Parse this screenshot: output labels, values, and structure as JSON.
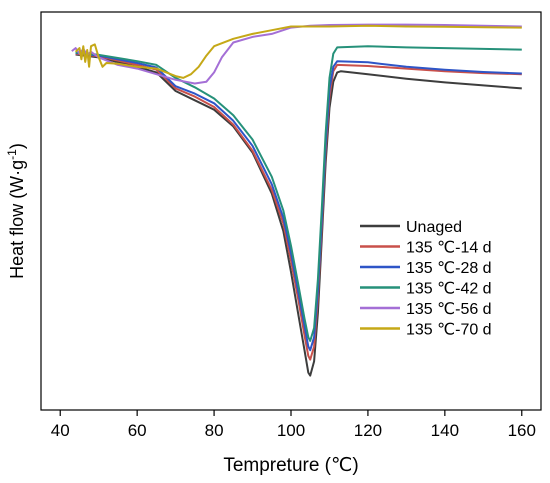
{
  "chart_data": {
    "type": "line",
    "title": "",
    "xlabel": "Tempreture (℃)",
    "ylabel": "Heat flow (W·g⁻¹)",
    "ylabel_parts": {
      "main": "Heat flow (W·g",
      "sup": "-1",
      "close": ")"
    },
    "xlim": [
      35,
      165
    ],
    "ylim": [
      0,
      1
    ],
    "xticks": [
      40,
      60,
      80,
      100,
      120,
      140,
      160
    ],
    "xtick_labels": [
      "40",
      "60",
      "80",
      "100",
      "120",
      "140",
      "160"
    ],
    "y_tick_labels_shown": false,
    "grid": false,
    "legend_position": "lower-right",
    "series": [
      {
        "name": "Unaged",
        "color": "#3d3d3d",
        "points": [
          [
            44,
            0.913
          ],
          [
            50,
            0.905
          ],
          [
            60,
            0.88
          ],
          [
            65,
            0.865
          ],
          [
            70,
            0.815
          ],
          [
            75,
            0.79
          ],
          [
            80,
            0.765
          ],
          [
            85,
            0.72
          ],
          [
            90,
            0.65
          ],
          [
            95,
            0.54
          ],
          [
            98,
            0.44
          ],
          [
            100,
            0.33
          ],
          [
            102,
            0.21
          ],
          [
            103.5,
            0.12
          ],
          [
            104.5,
            0.06
          ],
          [
            105,
            0.052
          ],
          [
            106,
            0.09
          ],
          [
            107,
            0.22
          ],
          [
            108,
            0.42
          ],
          [
            109,
            0.62
          ],
          [
            110,
            0.77
          ],
          [
            111,
            0.84
          ],
          [
            112,
            0.865
          ],
          [
            113,
            0.868
          ],
          [
            120,
            0.86
          ],
          [
            130,
            0.848
          ],
          [
            140,
            0.838
          ],
          [
            150,
            0.83
          ],
          [
            160,
            0.822
          ]
        ]
      },
      {
        "name": "135 ℃-14 d",
        "color": "#c9504a",
        "points": [
          [
            44,
            0.915
          ],
          [
            50,
            0.908
          ],
          [
            60,
            0.885
          ],
          [
            65,
            0.872
          ],
          [
            70,
            0.822
          ],
          [
            75,
            0.8
          ],
          [
            80,
            0.772
          ],
          [
            85,
            0.725
          ],
          [
            90,
            0.655
          ],
          [
            95,
            0.55
          ],
          [
            98,
            0.46
          ],
          [
            100,
            0.36
          ],
          [
            102,
            0.25
          ],
          [
            103.5,
            0.16
          ],
          [
            104.5,
            0.105
          ],
          [
            105,
            0.095
          ],
          [
            106,
            0.13
          ],
          [
            107,
            0.26
          ],
          [
            108,
            0.45
          ],
          [
            109,
            0.65
          ],
          [
            110,
            0.8
          ],
          [
            111,
            0.868
          ],
          [
            112,
            0.885
          ],
          [
            120,
            0.882
          ],
          [
            130,
            0.875
          ],
          [
            140,
            0.868
          ],
          [
            150,
            0.863
          ],
          [
            160,
            0.86
          ]
        ]
      },
      {
        "name": "135 ℃-28 d",
        "color": "#2e55c7",
        "points": [
          [
            44,
            0.917
          ],
          [
            50,
            0.91
          ],
          [
            60,
            0.89
          ],
          [
            65,
            0.878
          ],
          [
            70,
            0.828
          ],
          [
            75,
            0.808
          ],
          [
            80,
            0.782
          ],
          [
            85,
            0.735
          ],
          [
            90,
            0.668
          ],
          [
            95,
            0.565
          ],
          [
            98,
            0.475
          ],
          [
            100,
            0.38
          ],
          [
            102,
            0.27
          ],
          [
            103.5,
            0.185
          ],
          [
            104.5,
            0.13
          ],
          [
            105,
            0.12
          ],
          [
            106,
            0.155
          ],
          [
            107,
            0.28
          ],
          [
            108,
            0.47
          ],
          [
            109,
            0.67
          ],
          [
            110,
            0.82
          ],
          [
            111,
            0.88
          ],
          [
            112,
            0.895
          ],
          [
            120,
            0.892
          ],
          [
            130,
            0.88
          ],
          [
            140,
            0.872
          ],
          [
            150,
            0.866
          ],
          [
            160,
            0.862
          ]
        ]
      },
      {
        "name": "135 ℃-42 d",
        "color": "#26917a",
        "points": [
          [
            44,
            0.918
          ],
          [
            50,
            0.912
          ],
          [
            60,
            0.895
          ],
          [
            65,
            0.885
          ],
          [
            70,
            0.85
          ],
          [
            75,
            0.825
          ],
          [
            80,
            0.795
          ],
          [
            85,
            0.75
          ],
          [
            90,
            0.685
          ],
          [
            95,
            0.585
          ],
          [
            98,
            0.495
          ],
          [
            100,
            0.4
          ],
          [
            102,
            0.29
          ],
          [
            103.5,
            0.205
          ],
          [
            104.5,
            0.155
          ],
          [
            105,
            0.145
          ],
          [
            106,
            0.18
          ],
          [
            107,
            0.31
          ],
          [
            108,
            0.5
          ],
          [
            109,
            0.7
          ],
          [
            110,
            0.85
          ],
          [
            111,
            0.915
          ],
          [
            112,
            0.932
          ],
          [
            120,
            0.935
          ],
          [
            130,
            0.932
          ],
          [
            140,
            0.93
          ],
          [
            150,
            0.928
          ],
          [
            160,
            0.926
          ]
        ]
      },
      {
        "name": "135 ℃-56 d",
        "color": "#a46fd6",
        "points": [
          [
            43,
            0.922
          ],
          [
            44,
            0.93
          ],
          [
            45,
            0.915
          ],
          [
            46,
            0.928
          ],
          [
            47,
            0.912
          ],
          [
            48,
            0.92
          ],
          [
            50,
            0.905
          ],
          [
            55,
            0.885
          ],
          [
            60,
            0.875
          ],
          [
            65,
            0.86
          ],
          [
            70,
            0.845
          ],
          [
            75,
            0.835
          ],
          [
            78,
            0.84
          ],
          [
            80,
            0.865
          ],
          [
            82,
            0.905
          ],
          [
            85,
            0.945
          ],
          [
            90,
            0.96
          ],
          [
            95,
            0.968
          ],
          [
            100,
            0.985
          ],
          [
            105,
            0.99
          ],
          [
            110,
            0.992
          ],
          [
            120,
            0.993
          ],
          [
            130,
            0.993
          ],
          [
            140,
            0.992
          ],
          [
            150,
            0.99
          ],
          [
            160,
            0.988
          ]
        ]
      },
      {
        "name": "135 ℃-70 d",
        "color": "#c5a817",
        "points": [
          [
            44,
            0.92
          ],
          [
            45,
            0.93
          ],
          [
            45.5,
            0.9
          ],
          [
            46,
            0.935
          ],
          [
            46.5,
            0.893
          ],
          [
            47,
            0.925
          ],
          [
            47.5,
            0.88
          ],
          [
            48,
            0.935
          ],
          [
            49,
            0.94
          ],
          [
            50,
            0.905
          ],
          [
            51,
            0.88
          ],
          [
            52,
            0.89
          ],
          [
            55,
            0.888
          ],
          [
            60,
            0.88
          ],
          [
            65,
            0.875
          ],
          [
            70,
            0.855
          ],
          [
            72,
            0.85
          ],
          [
            74,
            0.86
          ],
          [
            76,
            0.88
          ],
          [
            78,
            0.91
          ],
          [
            80,
            0.935
          ],
          [
            85,
            0.955
          ],
          [
            90,
            0.968
          ],
          [
            95,
            0.978
          ],
          [
            100,
            0.988
          ],
          [
            110,
            0.988
          ],
          [
            120,
            0.99
          ],
          [
            130,
            0.988
          ],
          [
            140,
            0.987
          ],
          [
            150,
            0.986
          ],
          [
            160,
            0.985
          ]
        ]
      }
    ]
  }
}
